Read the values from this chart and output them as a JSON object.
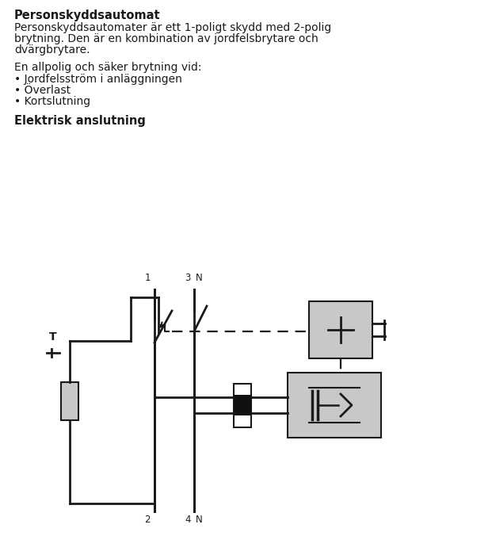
{
  "title": "Personskyddsautomat",
  "para1_lines": [
    "Personskyddsautomater är ett 1-poligt skydd med 2-polig",
    "brytning. Den är en kombination av jordfelsbrytare och",
    "dvärgbrytare."
  ],
  "para2": "En allpolig och säker brytning vid:",
  "bullets": [
    "Jordfelsström i anläggningen",
    "Överlast",
    "Kortslutning"
  ],
  "section2": "Elektrisk anslutning",
  "bg_color": "#ffffff",
  "text_color": "#1a1a1a",
  "line_color": "#1a1a1a",
  "gray_fill": "#c8c8c8",
  "dark_fill": "#111111",
  "fig_width": 6.21,
  "fig_height": 7.0,
  "dpi": 100
}
